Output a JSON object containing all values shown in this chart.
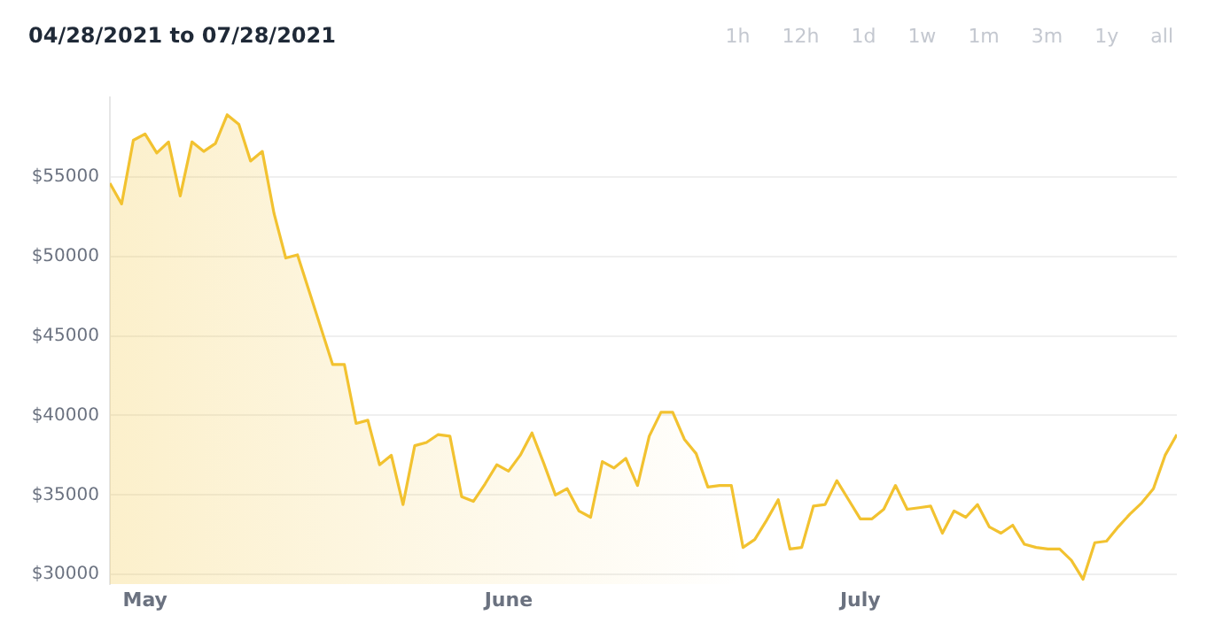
{
  "chart_data": {
    "type": "area",
    "title": "04/28/2021 to 07/28/2021",
    "annotations": [
      "1h",
      "12h",
      "1d",
      "1w",
      "1m",
      "3m",
      "1y",
      "all"
    ],
    "x": [
      "2021-04-28",
      "2021-04-29",
      "2021-04-30",
      "2021-05-01",
      "2021-05-02",
      "2021-05-03",
      "2021-05-04",
      "2021-05-05",
      "2021-05-06",
      "2021-05-07",
      "2021-05-08",
      "2021-05-09",
      "2021-05-10",
      "2021-05-11",
      "2021-05-12",
      "2021-05-13",
      "2021-05-14",
      "2021-05-15",
      "2021-05-16",
      "2021-05-17",
      "2021-05-18",
      "2021-05-19",
      "2021-05-20",
      "2021-05-21",
      "2021-05-22",
      "2021-05-23",
      "2021-05-24",
      "2021-05-25",
      "2021-05-26",
      "2021-05-27",
      "2021-05-28",
      "2021-05-29",
      "2021-05-30",
      "2021-05-31",
      "2021-06-01",
      "2021-06-02",
      "2021-06-03",
      "2021-06-04",
      "2021-06-05",
      "2021-06-06",
      "2021-06-07",
      "2021-06-08",
      "2021-06-09",
      "2021-06-10",
      "2021-06-11",
      "2021-06-12",
      "2021-06-13",
      "2021-06-14",
      "2021-06-15",
      "2021-06-16",
      "2021-06-17",
      "2021-06-18",
      "2021-06-19",
      "2021-06-20",
      "2021-06-21",
      "2021-06-22",
      "2021-06-23",
      "2021-06-24",
      "2021-06-25",
      "2021-06-26",
      "2021-06-27",
      "2021-06-28",
      "2021-06-29",
      "2021-06-30",
      "2021-07-01",
      "2021-07-02",
      "2021-07-03",
      "2021-07-04",
      "2021-07-05",
      "2021-07-06",
      "2021-07-07",
      "2021-07-08",
      "2021-07-09",
      "2021-07-10",
      "2021-07-11",
      "2021-07-12",
      "2021-07-13",
      "2021-07-14",
      "2021-07-15",
      "2021-07-16",
      "2021-07-17",
      "2021-07-18",
      "2021-07-19",
      "2021-07-20",
      "2021-07-21",
      "2021-07-22",
      "2021-07-23",
      "2021-07-24",
      "2021-07-25",
      "2021-07-26",
      "2021-07-27",
      "2021-07-28"
    ],
    "series": [
      {
        "color": "#f2c230",
        "values": [
          54600,
          53300,
          57300,
          57700,
          56500,
          57200,
          53800,
          57200,
          56600,
          57100,
          58900,
          58300,
          56000,
          56600,
          52700,
          49900,
          50100,
          47800,
          45500,
          43200,
          43200,
          39500,
          39700,
          36900,
          37500,
          34400,
          38100,
          38300,
          38800,
          38700,
          34900,
          34600,
          35700,
          36900,
          36500,
          37500,
          38900,
          37000,
          35000,
          35400,
          34000,
          33600,
          37100,
          36700,
          37300,
          35600,
          38700,
          40200,
          40200,
          38500,
          37600,
          35500,
          35600,
          35600,
          31700,
          32200,
          33400,
          34700,
          31600,
          31700,
          34300,
          34400,
          35900,
          34700,
          33500,
          33500,
          34100,
          35600,
          34100,
          34200,
          34300,
          32600,
          34000,
          33600,
          34400,
          33000,
          32600,
          33100,
          31900,
          31700,
          31600,
          31600,
          30900,
          29700,
          32000,
          32100,
          33000,
          33800,
          34500,
          35400,
          37500,
          38800
        ]
      }
    ],
    "xlim": [
      "2021-04-28",
      "2021-07-28"
    ],
    "xticks": [
      {
        "value": "2021-05-01",
        "label": "May"
      },
      {
        "value": "2021-06-01",
        "label": "June"
      },
      {
        "value": "2021-07-01",
        "label": "July"
      }
    ],
    "ylim": [
      29400,
      60000
    ],
    "yticks": [
      {
        "value": 30000,
        "label": "$30000"
      },
      {
        "value": 35000,
        "label": "$35000"
      },
      {
        "value": 40000,
        "label": "$40000"
      },
      {
        "value": 45000,
        "label": "$45000"
      },
      {
        "value": 50000,
        "label": "$50000"
      },
      {
        "value": 55000,
        "label": "$55000"
      }
    ],
    "grid": "y",
    "legend": false,
    "marker": "none",
    "line_style": "solid"
  }
}
